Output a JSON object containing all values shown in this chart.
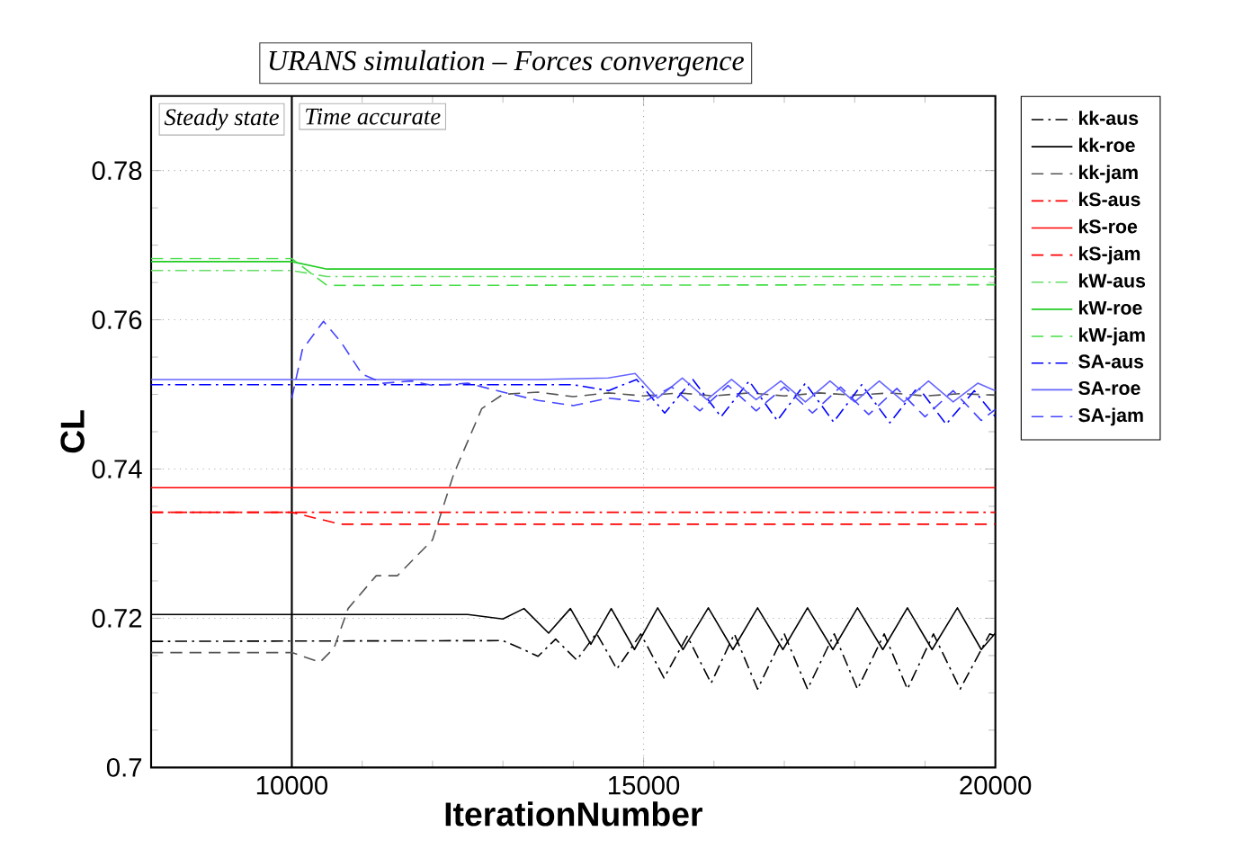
{
  "chart_data": {
    "type": "line",
    "title": "URANS simulation – Forces convergence",
    "xlabel": "IterationNumber",
    "ylabel": "CL",
    "xlim": [
      8000,
      20000
    ],
    "xticks": [
      10000,
      15000,
      20000
    ],
    "ylim": [
      0.7,
      0.79
    ],
    "yticks": [
      0.7,
      0.72,
      0.74,
      0.76,
      0.78
    ],
    "grid": true,
    "legend": "right",
    "annotations": [
      "Steady state",
      "Time accurate"
    ],
    "ref_lines": [
      {
        "axis": "x",
        "value": 10000,
        "color": "#000000",
        "line_style": "solid"
      }
    ],
    "series": [
      {
        "name": "kk-aus",
        "color": "#000000",
        "line_style": "dashdot",
        "x": [
          8000,
          13000,
          13200,
          13500,
          13750,
          14050,
          14330,
          14620,
          14960,
          15290,
          15620,
          15960,
          16290,
          16620,
          17000,
          17330,
          17710,
          18040,
          18420,
          18750,
          19120,
          19500,
          19920,
          20000
        ],
        "values": [
          0.7169,
          0.717,
          0.7162,
          0.7149,
          0.7172,
          0.7144,
          0.718,
          0.7132,
          0.7179,
          0.712,
          0.7176,
          0.7113,
          0.7179,
          0.7105,
          0.7179,
          0.7105,
          0.7179,
          0.7105,
          0.7179,
          0.7105,
          0.7179,
          0.7105,
          0.7179,
          0.7176
        ]
      },
      {
        "name": "kk-roe",
        "color": "#000000",
        "line_style": "solid",
        "x": [
          8000,
          12500,
          13000,
          13300,
          13650,
          13960,
          14250,
          14540,
          14870,
          15200,
          15560,
          15920,
          16270,
          16620,
          16980,
          17330,
          17690,
          18040,
          18400,
          18750,
          19100,
          19460,
          19800,
          20000
        ],
        "values": [
          0.7205,
          0.7205,
          0.7199,
          0.7213,
          0.718,
          0.7213,
          0.7165,
          0.7213,
          0.7158,
          0.7214,
          0.7158,
          0.7214,
          0.7158,
          0.7214,
          0.7158,
          0.7214,
          0.7158,
          0.7214,
          0.7158,
          0.7214,
          0.7158,
          0.7214,
          0.7158,
          0.718
        ]
      },
      {
        "name": "kk-jam",
        "color": "#555555",
        "line_style": "dashed",
        "x": [
          8000,
          10000,
          10400,
          10600,
          10800,
          11200,
          11500,
          12000,
          12300,
          12700,
          13000,
          13500,
          14000,
          14500,
          15000,
          15500,
          16000,
          16500,
          17000,
          17500,
          18000,
          18500,
          19000,
          19500,
          20000
        ],
        "values": [
          0.7154,
          0.7154,
          0.7141,
          0.716,
          0.7213,
          0.7257,
          0.7257,
          0.7305,
          0.7393,
          0.7481,
          0.75,
          0.7503,
          0.7497,
          0.7502,
          0.7498,
          0.7502,
          0.7498,
          0.7502,
          0.7498,
          0.7502,
          0.7499,
          0.7502,
          0.7498,
          0.7501,
          0.7499
        ]
      },
      {
        "name": "kS-aus",
        "color": "#ff0000",
        "line_style": "dashdot",
        "x": [
          8000,
          20000
        ],
        "values": [
          0.7342,
          0.7342
        ]
      },
      {
        "name": "kS-roe",
        "color": "#ff0000",
        "line_style": "solid",
        "x": [
          8000,
          20000
        ],
        "values": [
          0.7375,
          0.7375
        ]
      },
      {
        "name": "kS-jam",
        "color": "#ff0000",
        "line_style": "dashed",
        "x": [
          8000,
          10000,
          10300,
          10700,
          20000
        ],
        "values": [
          0.7342,
          0.7342,
          0.7335,
          0.7326,
          0.7326
        ]
      },
      {
        "name": "kW-aus",
        "color": "#66dd66",
        "line_style": "dashdot",
        "x": [
          8000,
          10000,
          10500,
          20000
        ],
        "values": [
          0.7666,
          0.7666,
          0.7658,
          0.7658
        ]
      },
      {
        "name": "kW-roe",
        "color": "#22cc22",
        "line_style": "solid",
        "x": [
          8000,
          10000,
          10500,
          20000
        ],
        "values": [
          0.7678,
          0.7678,
          0.7668,
          0.7668
        ]
      },
      {
        "name": "kW-jam",
        "color": "#44dd44",
        "line_style": "dashed",
        "x": [
          8000,
          10000,
          10500,
          20000
        ],
        "values": [
          0.7682,
          0.7682,
          0.7646,
          0.7647
        ]
      },
      {
        "name": "SA-aus",
        "color": "#0000ff",
        "line_style": "dashdot",
        "x": [
          8000,
          14000,
          14500,
          14900,
          15300,
          15700,
          16100,
          16500,
          16900,
          17300,
          17700,
          18100,
          18500,
          18900,
          19300,
          19700,
          20000
        ],
        "values": [
          0.7513,
          0.7513,
          0.7505,
          0.752,
          0.7475,
          0.752,
          0.747,
          0.7518,
          0.7465,
          0.7515,
          0.7463,
          0.7513,
          0.7462,
          0.751,
          0.746,
          0.7505,
          0.747
        ]
      },
      {
        "name": "SA-roe",
        "color": "#6666ff",
        "line_style": "solid",
        "x": [
          8000,
          13500,
          14500,
          14880,
          15200,
          15550,
          15900,
          16250,
          16600,
          16950,
          17300,
          17650,
          18000,
          18350,
          18700,
          19050,
          19400,
          19750,
          20000
        ],
        "values": [
          0.752,
          0.752,
          0.7522,
          0.7528,
          0.7495,
          0.7522,
          0.7493,
          0.752,
          0.7493,
          0.7518,
          0.749,
          0.7518,
          0.749,
          0.7518,
          0.749,
          0.7518,
          0.749,
          0.7515,
          0.7505
        ]
      },
      {
        "name": "SA-jam",
        "color": "#4444ff",
        "line_style": "dashed",
        "x": [
          10000,
          10150,
          10450,
          10700,
          11000,
          11300,
          11700,
          12000,
          12500,
          13000,
          13500,
          14000,
          14500,
          15000,
          15400,
          15800,
          16200,
          16600,
          17000,
          17400,
          17800,
          18200,
          18600,
          19000,
          19400,
          19800,
          20000
        ],
        "values": [
          0.7495,
          0.756,
          0.7598,
          0.757,
          0.7527,
          0.7515,
          0.7518,
          0.7512,
          0.7515,
          0.7503,
          0.7492,
          0.7485,
          0.7495,
          0.749,
          0.751,
          0.7478,
          0.7512,
          0.7478,
          0.751,
          0.7475,
          0.751,
          0.7473,
          0.7508,
          0.747,
          0.7505,
          0.7465,
          0.748
        ]
      }
    ]
  }
}
